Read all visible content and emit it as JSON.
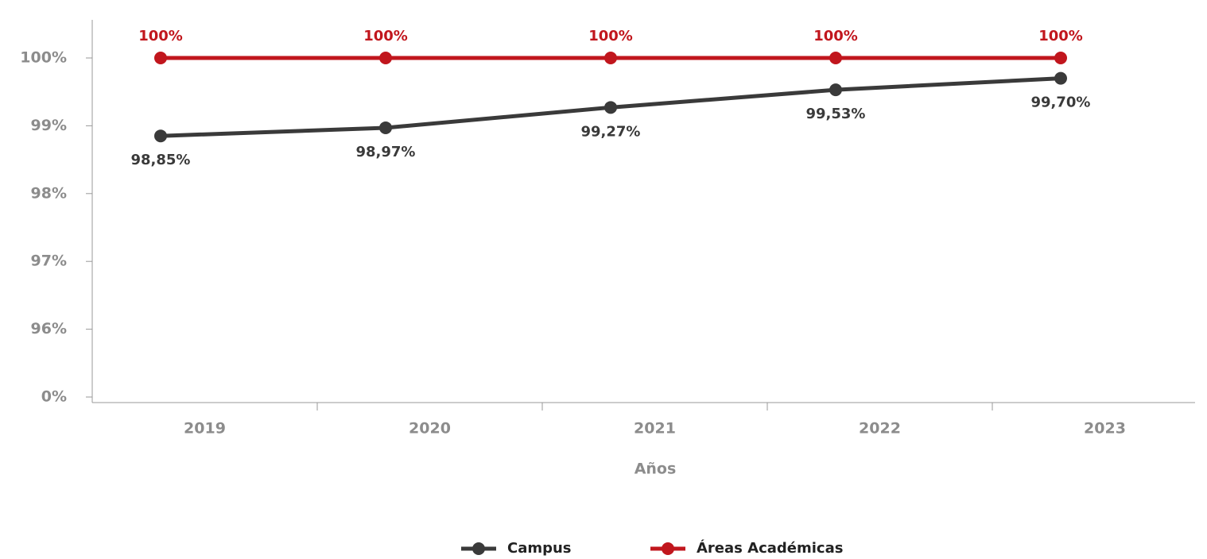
{
  "chart_data": {
    "type": "line",
    "x_label": "Años",
    "categories": [
      "2019",
      "2020",
      "2021",
      "2022",
      "2023"
    ],
    "series": [
      {
        "name": "Campus",
        "color": "#3a3a3a",
        "values": [
          98.85,
          98.97,
          99.27,
          99.53,
          99.7
        ],
        "value_labels": [
          "98,85%",
          "98,97%",
          "99,27%",
          "99,53%",
          "99,70%"
        ]
      },
      {
        "name": "Áreas Académicas",
        "color": "#c1161d",
        "values": [
          100,
          100,
          100,
          100,
          100
        ],
        "value_labels": [
          "100%",
          "100%",
          "100%",
          "100%",
          "100%"
        ]
      }
    ],
    "ylim": [
      0,
      100
    ],
    "yticks": [
      {
        "value": 0,
        "label": "0%"
      },
      {
        "value": 96,
        "label": "96%"
      },
      {
        "value": 97,
        "label": "97%"
      },
      {
        "value": 98,
        "label": "98%"
      },
      {
        "value": 99,
        "label": "99%"
      },
      {
        "value": 100,
        "label": "100%"
      }
    ],
    "legend": "bottom"
  }
}
